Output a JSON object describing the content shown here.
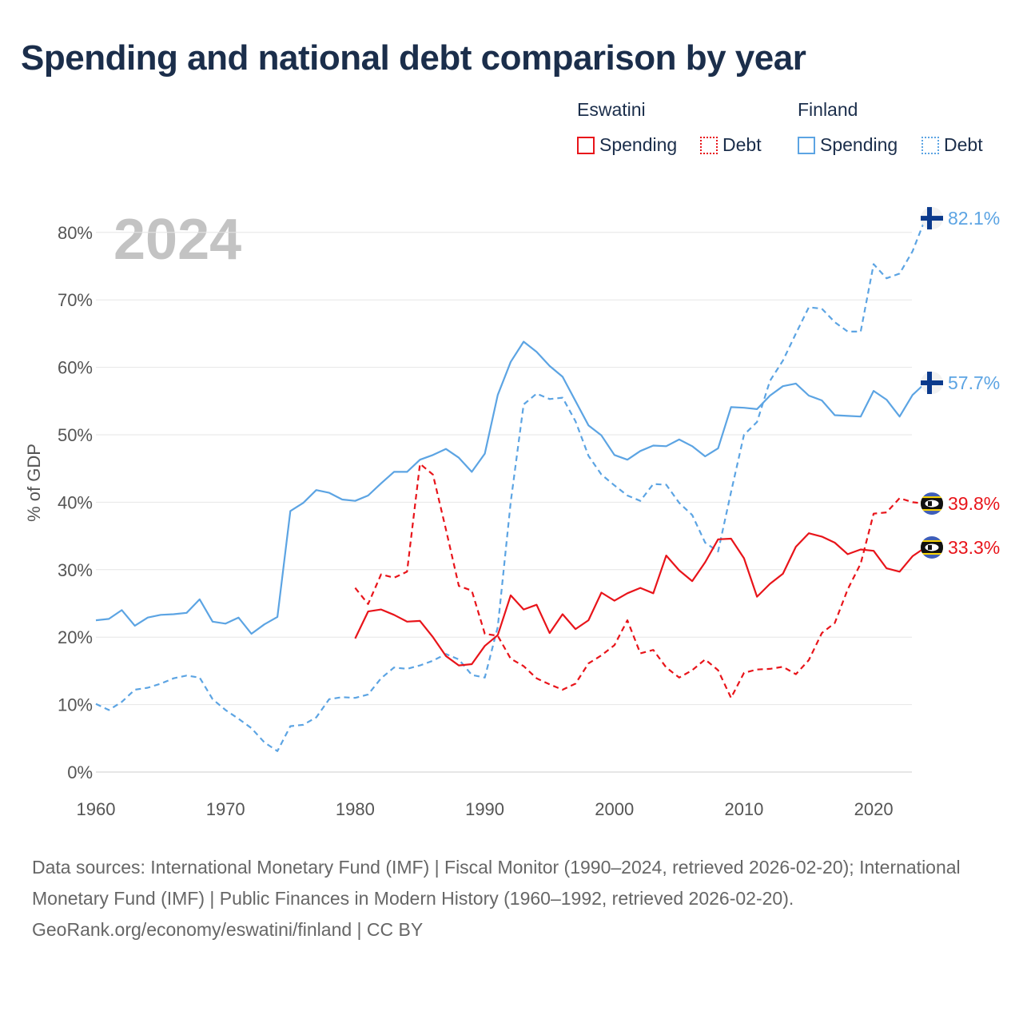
{
  "title": "Spending and national debt comparison by year",
  "legend": [
    {
      "country": "Eswatini",
      "spending_label": "Spending",
      "debt_label": "Debt",
      "color": "#e8141a"
    },
    {
      "country": "Finland",
      "spending_label": "Spending",
      "debt_label": "Debt",
      "color": "#5ca4e3"
    }
  ],
  "chart_data": {
    "type": "line",
    "year_display": "2024",
    "ylabel": "% of GDP",
    "xlim": [
      1960,
      2024
    ],
    "ylim": [
      0,
      85
    ],
    "x_ticks": [
      {
        "value": 1960,
        "label": "1960"
      },
      {
        "value": 1970,
        "label": "1970"
      },
      {
        "value": 1980,
        "label": "1980"
      },
      {
        "value": 1990,
        "label": "1990"
      },
      {
        "value": 2000,
        "label": "2000"
      },
      {
        "value": 2010,
        "label": "2010"
      },
      {
        "value": 2020,
        "label": "2020"
      }
    ],
    "y_ticks": [
      {
        "value": 0,
        "label": "0%"
      },
      {
        "value": 10,
        "label": "10%"
      },
      {
        "value": 20,
        "label": "20%"
      },
      {
        "value": 30,
        "label": "30%"
      },
      {
        "value": 40,
        "label": "40%"
      },
      {
        "value": 50,
        "label": "50%"
      },
      {
        "value": 60,
        "label": "60%"
      },
      {
        "value": 70,
        "label": "70%"
      },
      {
        "value": 80,
        "label": "80%"
      }
    ],
    "series": [
      {
        "name": "Finland Spending",
        "country": "Finland",
        "kind": "spending",
        "color": "#5ca4e3",
        "dashed": false,
        "end_label": "57.7%",
        "start_year": 1960,
        "values": [
          22.5,
          22.7,
          24.0,
          21.7,
          22.9,
          23.3,
          23.4,
          23.6,
          25.6,
          22.3,
          22.0,
          22.9,
          20.5,
          21.9,
          23.0,
          38.7,
          39.9,
          41.8,
          41.4,
          40.4,
          40.2,
          41.0,
          42.8,
          44.5,
          44.5,
          46.3,
          47.0,
          47.9,
          46.6,
          44.5,
          47.2,
          55.9,
          60.8,
          63.8,
          62.3,
          60.2,
          58.6,
          55.0,
          51.4,
          49.9,
          47.0,
          46.3,
          47.6,
          48.4,
          48.3,
          49.3,
          48.3,
          46.8,
          48.0,
          54.1,
          54.0,
          53.8,
          55.8,
          57.2,
          57.6,
          55.8,
          55.1,
          52.9,
          52.8,
          52.7,
          56.5,
          55.2,
          52.7,
          55.9,
          57.7
        ]
      },
      {
        "name": "Finland Debt",
        "country": "Finland",
        "kind": "debt",
        "color": "#5ca4e3",
        "dashed": true,
        "end_label": "82.1%",
        "start_year": 1960,
        "values": [
          10.1,
          9.2,
          10.4,
          12.2,
          12.5,
          13.1,
          13.9,
          14.3,
          14.0,
          10.8,
          9.2,
          7.9,
          6.5,
          4.4,
          3.1,
          6.8,
          7.0,
          8.1,
          10.8,
          11.1,
          11.0,
          11.5,
          13.9,
          15.5,
          15.3,
          15.8,
          16.5,
          17.5,
          16.7,
          14.4,
          14.0,
          21.5,
          40.0,
          54.5,
          56.1,
          55.3,
          55.5,
          52.0,
          46.9,
          44.1,
          42.5,
          41.0,
          40.2,
          42.7,
          42.6,
          39.9,
          38.1,
          34.0,
          32.7,
          41.5,
          50.0,
          51.9,
          58.0,
          61.0,
          65.0,
          68.9,
          68.7,
          66.7,
          65.3,
          65.3,
          75.3,
          73.2,
          73.9,
          77.2,
          82.1
        ]
      },
      {
        "name": "Eswatini Spending",
        "country": "Eswatini",
        "kind": "spending",
        "color": "#e8141a",
        "dashed": false,
        "end_label": "33.3%",
        "start_year": 1980,
        "values": [
          19.8,
          23.8,
          24.1,
          23.3,
          22.3,
          22.4,
          20.0,
          17.2,
          15.8,
          16.0,
          18.7,
          20.3,
          26.2,
          24.1,
          24.8,
          20.6,
          23.4,
          21.2,
          22.5,
          26.6,
          25.4,
          26.5,
          27.3,
          26.5,
          32.1,
          29.9,
          28.3,
          31.1,
          34.5,
          34.6,
          31.7,
          26.0,
          27.9,
          29.4,
          33.4,
          35.4,
          34.9,
          34.0,
          32.3,
          33.0,
          32.8,
          30.2,
          29.7,
          32.0,
          33.3
        ]
      },
      {
        "name": "Eswatini Debt",
        "country": "Eswatini",
        "kind": "debt",
        "color": "#e8141a",
        "dashed": true,
        "end_label": "39.8%",
        "start_year": 1980,
        "values": [
          27.3,
          24.9,
          29.3,
          28.8,
          29.7,
          45.7,
          44.1,
          36.0,
          27.6,
          26.9,
          20.5,
          20.2,
          16.8,
          15.7,
          13.9,
          13.0,
          12.2,
          13.1,
          16.1,
          17.3,
          18.8,
          22.5,
          17.6,
          18.1,
          15.5,
          14.0,
          15.1,
          16.7,
          15.1,
          11.0,
          14.7,
          15.2,
          15.3,
          15.6,
          14.5,
          16.6,
          20.6,
          22.1,
          27.1,
          30.9,
          38.3,
          38.5,
          40.6,
          40.0,
          39.8
        ]
      }
    ]
  }
}
